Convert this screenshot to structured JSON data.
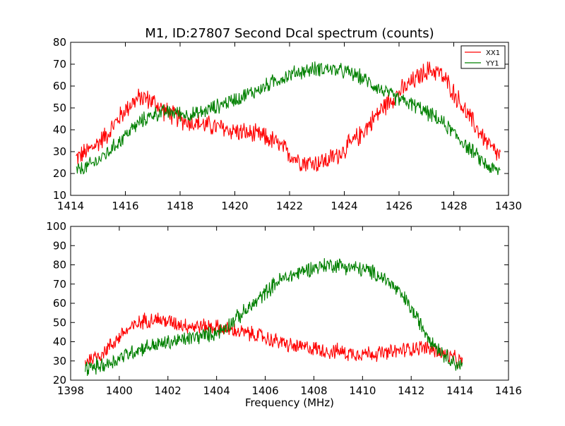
{
  "chart_data": [
    {
      "type": "line",
      "title": "M1, ID:27807 Second Dcal spectrum (counts)",
      "xlabel": "",
      "ylabel": "",
      "xlim": [
        1414,
        1430
      ],
      "ylim": [
        10,
        80
      ],
      "xticks": [
        1414,
        1416,
        1418,
        1420,
        1422,
        1424,
        1426,
        1428,
        1430
      ],
      "yticks": [
        10,
        20,
        30,
        40,
        50,
        60,
        70,
        80
      ],
      "legend": {
        "position": "top-right",
        "entries": [
          "XX1",
          "YY1"
        ]
      },
      "grid": false,
      "series": [
        {
          "name": "XX1",
          "color": "#ff0000",
          "noise": 4,
          "points": [
            [
              1414.2,
              27
            ],
            [
              1414.6,
              30
            ],
            [
              1415.0,
              34
            ],
            [
              1415.4,
              39
            ],
            [
              1415.8,
              46
            ],
            [
              1416.2,
              52
            ],
            [
              1416.6,
              55
            ],
            [
              1417.0,
              53
            ],
            [
              1417.4,
              49
            ],
            [
              1417.8,
              46
            ],
            [
              1418.2,
              44
            ],
            [
              1418.6,
              43
            ],
            [
              1419.0,
              42
            ],
            [
              1419.4,
              41
            ],
            [
              1419.8,
              40
            ],
            [
              1420.2,
              39
            ],
            [
              1420.6,
              38
            ],
            [
              1421.0,
              37
            ],
            [
              1421.4,
              35
            ],
            [
              1421.8,
              31
            ],
            [
              1422.2,
              27
            ],
            [
              1422.6,
              25
            ],
            [
              1423.0,
              25
            ],
            [
              1423.4,
              26
            ],
            [
              1423.8,
              29
            ],
            [
              1424.2,
              33
            ],
            [
              1424.6,
              38
            ],
            [
              1425.0,
              44
            ],
            [
              1425.4,
              50
            ],
            [
              1425.8,
              55
            ],
            [
              1426.2,
              59
            ],
            [
              1426.6,
              63
            ],
            [
              1427.0,
              67
            ],
            [
              1427.4,
              67
            ],
            [
              1427.8,
              61
            ],
            [
              1428.2,
              53
            ],
            [
              1428.6,
              45
            ],
            [
              1429.0,
              38
            ],
            [
              1429.4,
              31
            ],
            [
              1429.7,
              28
            ]
          ]
        },
        {
          "name": "YY1",
          "color": "#008000",
          "noise": 3,
          "points": [
            [
              1414.2,
              21
            ],
            [
              1414.6,
              23
            ],
            [
              1415.0,
              26
            ],
            [
              1415.4,
              30
            ],
            [
              1415.8,
              35
            ],
            [
              1416.2,
              40
            ],
            [
              1416.6,
              44
            ],
            [
              1417.0,
              47
            ],
            [
              1417.4,
              48
            ],
            [
              1417.8,
              48
            ],
            [
              1418.2,
              47
            ],
            [
              1418.6,
              47
            ],
            [
              1419.0,
              49
            ],
            [
              1419.4,
              51
            ],
            [
              1419.8,
              53
            ],
            [
              1420.2,
              55
            ],
            [
              1420.6,
              57
            ],
            [
              1421.0,
              59
            ],
            [
              1421.4,
              62
            ],
            [
              1421.8,
              64
            ],
            [
              1422.2,
              66
            ],
            [
              1422.6,
              67
            ],
            [
              1423.0,
              68
            ],
            [
              1423.4,
              68
            ],
            [
              1423.8,
              67
            ],
            [
              1424.2,
              66
            ],
            [
              1424.6,
              64
            ],
            [
              1425.0,
              61
            ],
            [
              1425.4,
              58
            ],
            [
              1425.8,
              55
            ],
            [
              1426.2,
              53
            ],
            [
              1426.6,
              51
            ],
            [
              1427.0,
              48
            ],
            [
              1427.4,
              45
            ],
            [
              1427.8,
              41
            ],
            [
              1428.2,
              36
            ],
            [
              1428.6,
              31
            ],
            [
              1429.0,
              26
            ],
            [
              1429.4,
              22
            ],
            [
              1429.7,
              21
            ]
          ]
        }
      ]
    },
    {
      "type": "line",
      "title": "",
      "xlabel": "Frequency (MHz)",
      "ylabel": "",
      "xlim": [
        1398,
        1416
      ],
      "ylim": [
        20,
        100
      ],
      "xticks": [
        1398,
        1400,
        1402,
        1404,
        1406,
        1408,
        1410,
        1412,
        1414,
        1416
      ],
      "yticks": [
        20,
        30,
        40,
        50,
        60,
        70,
        80,
        90,
        100
      ],
      "grid": false,
      "series": [
        {
          "color": "#ff0000",
          "noise": 3.5,
          "points": [
            [
              1398.6,
              30
            ],
            [
              1399.0,
              32
            ],
            [
              1399.4,
              35
            ],
            [
              1399.8,
              40
            ],
            [
              1400.2,
              45
            ],
            [
              1400.6,
              48
            ],
            [
              1401.0,
              51
            ],
            [
              1401.4,
              52
            ],
            [
              1401.8,
              51
            ],
            [
              1402.2,
              50
            ],
            [
              1402.6,
              49
            ],
            [
              1403.0,
              48
            ],
            [
              1403.4,
              48
            ],
            [
              1403.8,
              48
            ],
            [
              1404.2,
              47
            ],
            [
              1404.6,
              46
            ],
            [
              1405.0,
              45
            ],
            [
              1405.4,
              44
            ],
            [
              1405.8,
              43
            ],
            [
              1406.2,
              41
            ],
            [
              1406.6,
              40
            ],
            [
              1407.0,
              38
            ],
            [
              1407.4,
              37
            ],
            [
              1407.8,
              37
            ],
            [
              1408.2,
              36
            ],
            [
              1408.6,
              35
            ],
            [
              1409.0,
              35
            ],
            [
              1409.4,
              34
            ],
            [
              1409.8,
              34
            ],
            [
              1410.2,
              34
            ],
            [
              1410.6,
              34
            ],
            [
              1411.0,
              34
            ],
            [
              1411.4,
              35
            ],
            [
              1411.8,
              36
            ],
            [
              1412.2,
              37
            ],
            [
              1412.6,
              37
            ],
            [
              1413.0,
              35
            ],
            [
              1413.4,
              33
            ],
            [
              1413.8,
              31
            ],
            [
              1414.1,
              29
            ]
          ]
        },
        {
          "color": "#008000",
          "noise": 3.5,
          "points": [
            [
              1398.6,
              26
            ],
            [
              1399.0,
              27
            ],
            [
              1399.4,
              28
            ],
            [
              1399.8,
              30
            ],
            [
              1400.2,
              33
            ],
            [
              1400.6,
              35
            ],
            [
              1401.0,
              37
            ],
            [
              1401.4,
              38
            ],
            [
              1401.8,
              39
            ],
            [
              1402.2,
              40
            ],
            [
              1402.6,
              41
            ],
            [
              1403.0,
              42
            ],
            [
              1403.4,
              43
            ],
            [
              1403.8,
              44
            ],
            [
              1404.2,
              46
            ],
            [
              1404.6,
              50
            ],
            [
              1405.0,
              54
            ],
            [
              1405.4,
              58
            ],
            [
              1405.8,
              63
            ],
            [
              1406.2,
              68
            ],
            [
              1406.6,
              72
            ],
            [
              1407.0,
              74
            ],
            [
              1407.4,
              76
            ],
            [
              1407.8,
              78
            ],
            [
              1408.2,
              79
            ],
            [
              1408.6,
              80
            ],
            [
              1409.0,
              80
            ],
            [
              1409.4,
              79
            ],
            [
              1409.8,
              78
            ],
            [
              1410.2,
              77
            ],
            [
              1410.6,
              75
            ],
            [
              1411.0,
              72
            ],
            [
              1411.4,
              67
            ],
            [
              1411.8,
              61
            ],
            [
              1412.2,
              53
            ],
            [
              1412.6,
              45
            ],
            [
              1413.0,
              38
            ],
            [
              1413.4,
              33
            ],
            [
              1413.8,
              29
            ],
            [
              1414.1,
              27
            ]
          ]
        }
      ]
    }
  ]
}
